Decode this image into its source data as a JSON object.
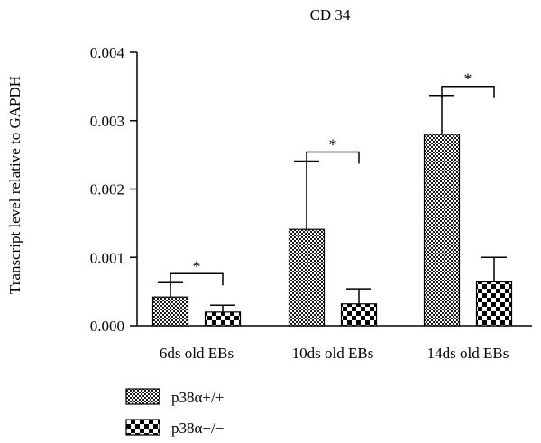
{
  "chart_data": {
    "type": "bar",
    "title": "CD 34",
    "ylabel": "Transcript level relative to GAPDH",
    "xlabel": "",
    "ylim": [
      0,
      0.004
    ],
    "yticks": [
      "0.000",
      "0.001",
      "0.002",
      "0.003",
      "0.004"
    ],
    "categories": [
      "6ds old EBs",
      "10ds old EBs",
      "14ds old EBs"
    ],
    "series": [
      {
        "name": "p38α+/+",
        "values": [
          0.00042,
          0.00141,
          0.0028
        ],
        "errors": [
          0.00021,
          0.001,
          0.00057
        ],
        "pattern": "fine-checker"
      },
      {
        "name": "p38α−/−",
        "values": [
          0.0002,
          0.00032,
          0.00064
        ],
        "errors": [
          0.0001,
          0.00022,
          0.00036
        ],
        "pattern": "coarse-checker"
      }
    ],
    "annotations": [
      "*",
      "*",
      "*"
    ],
    "legend_position": "bottom-left",
    "grid": false
  }
}
